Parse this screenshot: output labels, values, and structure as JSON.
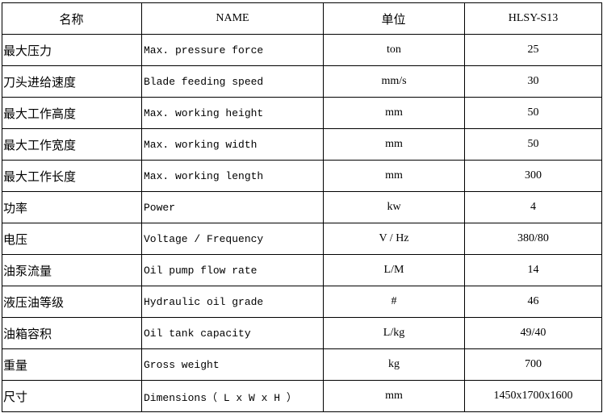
{
  "table": {
    "headers": [
      "名称",
      "NAME",
      "单位",
      "HLSY-S13"
    ],
    "rows": [
      [
        "最大压力",
        "Max. pressure force",
        "ton",
        "25"
      ],
      [
        "刀头进给速度",
        "Blade feeding speed",
        "mm/s",
        "30"
      ],
      [
        "最大工作高度",
        "Max. working height",
        "mm",
        "50"
      ],
      [
        "最大工作宽度",
        "Max. working width",
        "mm",
        "50"
      ],
      [
        "最大工作长度",
        "Max. working length",
        "mm",
        "300"
      ],
      [
        "功率",
        "Power",
        "kw",
        "4"
      ],
      [
        "电压",
        "Voltage / Frequency",
        "V / Hz",
        "380/80"
      ],
      [
        "油泵流量",
        "Oil pump flow rate",
        "L/M",
        "14"
      ],
      [
        "液压油等级",
        "Hydraulic oil grade",
        "#",
        "46"
      ],
      [
        "油箱容积",
        "Oil tank capacity",
        "L/kg",
        "49/40"
      ],
      [
        "重量",
        "Gross weight",
        "kg",
        "700"
      ],
      [
        "尺寸",
        "Dimensions（ L x W x H ）",
        "mm",
        "1450x1700x1600"
      ]
    ]
  }
}
